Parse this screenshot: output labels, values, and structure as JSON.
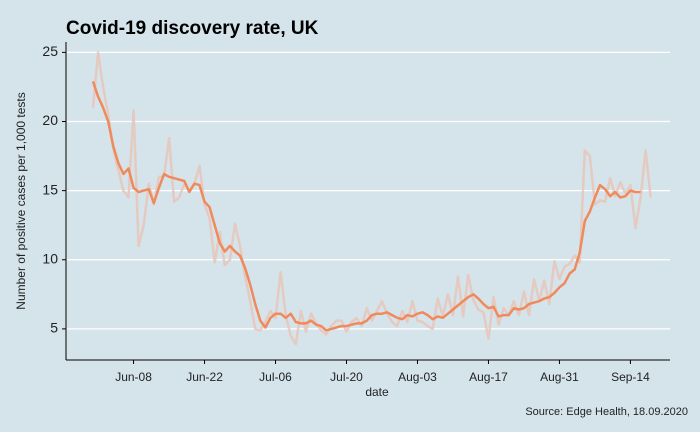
{
  "chart_data": {
    "type": "line",
    "title": "Covid-19 discovery rate, UK",
    "x_label": "date",
    "y_label": "Number of positive cases per 1,000 tests",
    "source": "Source: Edge Health, 18.09.2020",
    "categories": [
      "May-31",
      "Jun-01",
      "Jun-02",
      "Jun-03",
      "Jun-04",
      "Jun-05",
      "Jun-06",
      "Jun-07",
      "Jun-08",
      "Jun-09",
      "Jun-10",
      "Jun-11",
      "Jun-12",
      "Jun-13",
      "Jun-14",
      "Jun-15",
      "Jun-16",
      "Jun-17",
      "Jun-18",
      "Jun-19",
      "Jun-20",
      "Jun-21",
      "Jun-22",
      "Jun-23",
      "Jun-24",
      "Jun-25",
      "Jun-26",
      "Jun-27",
      "Jun-28",
      "Jun-29",
      "Jun-30",
      "Jul-01",
      "Jul-02",
      "Jul-03",
      "Jul-04",
      "Jul-05",
      "Jul-06",
      "Jul-07",
      "Jul-08",
      "Jul-09",
      "Jul-10",
      "Jul-11",
      "Jul-12",
      "Jul-13",
      "Jul-14",
      "Jul-15",
      "Jul-16",
      "Jul-17",
      "Jul-18",
      "Jul-19",
      "Jul-20",
      "Jul-21",
      "Jul-22",
      "Jul-23",
      "Jul-24",
      "Jul-25",
      "Jul-26",
      "Jul-27",
      "Jul-28",
      "Jul-29",
      "Jul-30",
      "Jul-31",
      "Aug-01",
      "Aug-02",
      "Aug-03",
      "Aug-04",
      "Aug-05",
      "Aug-06",
      "Aug-07",
      "Aug-08",
      "Aug-09",
      "Aug-10",
      "Aug-11",
      "Aug-12",
      "Aug-13",
      "Aug-14",
      "Aug-15",
      "Aug-16",
      "Aug-17",
      "Aug-18",
      "Aug-19",
      "Aug-20",
      "Aug-21",
      "Aug-22",
      "Aug-23",
      "Aug-24",
      "Aug-25",
      "Aug-26",
      "Aug-27",
      "Aug-28",
      "Aug-29",
      "Aug-30",
      "Aug-31",
      "Sep-01",
      "Sep-02",
      "Sep-03",
      "Sep-04",
      "Sep-05",
      "Sep-06",
      "Sep-07",
      "Sep-08",
      "Sep-09",
      "Sep-10",
      "Sep-11",
      "Sep-12",
      "Sep-13",
      "Sep-14",
      "Sep-15",
      "Sep-16",
      "Sep-17",
      "Sep-18"
    ],
    "xticks": [
      "Jun-08",
      "Jun-22",
      "Jul-06",
      "Jul-20",
      "Aug-03",
      "Aug-17",
      "Aug-31",
      "Sep-14"
    ],
    "ylim": [
      2.75,
      25.75
    ],
    "yticks": [
      5,
      10,
      15,
      20,
      25
    ],
    "grid": true,
    "series": [
      {
        "color": "#e6c6b8",
        "values": [
          21,
          25,
          22.5,
          20.5,
          18,
          16.5,
          15,
          14.5,
          20.8,
          11,
          12.5,
          15.5,
          14,
          16,
          16,
          18.8,
          14.2,
          14.5,
          15.5,
          15,
          15.5,
          16.8,
          14,
          13,
          9.8,
          12,
          9.6,
          10,
          12.6,
          11,
          8.8,
          7,
          5,
          4.9,
          5.5,
          6.3,
          5.8,
          9.1,
          6,
          4.5,
          3.9,
          6.3,
          4.8,
          6.1,
          5.4,
          4.9,
          4.6,
          5.2,
          5.6,
          5.6,
          4.8,
          5.5,
          5.8,
          5.2,
          6.5,
          5.6,
          6.3,
          7,
          6.1,
          5.5,
          5.2,
          6.3,
          5.5,
          7,
          5.6,
          5.5,
          5.2,
          5,
          7.2,
          5.9,
          7.5,
          6,
          8.8,
          5.9,
          8.9,
          7.1,
          6.4,
          6.2,
          4.3,
          7.3,
          5.3,
          6.5,
          6,
          7,
          6,
          7.7,
          6,
          8.6,
          7,
          8.5,
          6.8,
          9.9,
          8.6,
          9.5,
          9.7,
          10.3,
          9.8,
          17.9,
          17.5,
          14,
          14.3,
          14.2,
          15.9,
          14.6,
          15.6,
          14.8,
          15.4,
          12.3,
          14.5,
          17.9,
          14.5
        ]
      },
      {
        "color": "#f08a5d",
        "values": [
          22.9,
          21.8,
          21,
          20,
          18.2,
          17,
          16.2,
          16.6,
          15.2,
          14.9,
          15,
          15.1,
          14.1,
          15.2,
          16.2,
          16,
          15.9,
          15.8,
          15.7,
          14.9,
          15.5,
          15.4,
          14.2,
          13.8,
          12.5,
          11.2,
          10.6,
          11,
          10.6,
          10.3,
          9.4,
          8.2,
          6.8,
          5.6,
          5.1,
          5.8,
          6.1,
          6.1,
          5.8,
          6.1,
          5.5,
          5.4,
          5.4,
          5.6,
          5.3,
          5.2,
          4.9,
          5,
          5.1,
          5.2,
          5.2,
          5.3,
          5.4,
          5.4,
          5.6,
          6,
          6.1,
          6.1,
          6.2,
          6,
          5.8,
          5.7,
          6,
          5.9,
          6.1,
          6.2,
          6,
          5.7,
          5.9,
          5.8,
          6.1,
          6.4,
          6.7,
          7,
          7.3,
          7.5,
          7.2,
          6.8,
          6.5,
          6.6,
          5.9,
          6,
          6,
          6.5,
          6.4,
          6.5,
          6.8,
          6.9,
          7,
          7.2,
          7.3,
          7.6,
          8,
          8.3,
          9,
          9.3,
          10.5,
          12.8,
          13.5,
          14.5,
          15.4,
          15.1,
          14.6,
          14.9,
          14.5,
          14.6,
          15,
          14.9,
          14.9,
          null,
          null
        ]
      }
    ]
  }
}
